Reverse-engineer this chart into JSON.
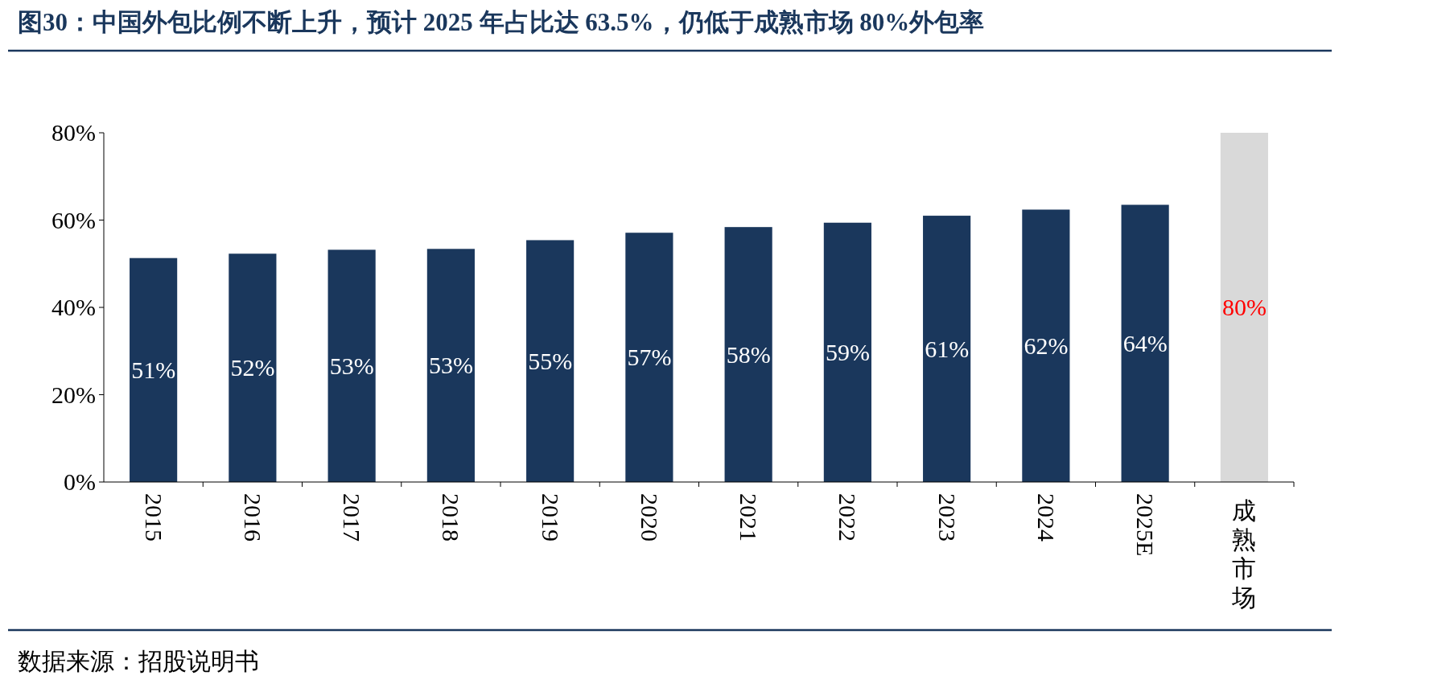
{
  "chart_data": {
    "type": "bar",
    "title": "图30：中国外包比例不断上升，预计 2025 年占比达 63.5%，仍低于成熟市场 80%外包率",
    "categories": [
      "2015",
      "2016",
      "2017",
      "2018",
      "2019",
      "2020",
      "2021",
      "2022",
      "2023",
      "2024",
      "2025E",
      "成熟市场"
    ],
    "values": [
      51.3,
      52.3,
      53.2,
      53.4,
      55.4,
      57.1,
      58.4,
      59.4,
      61.0,
      62.4,
      63.5,
      80
    ],
    "colors": [
      "#1a375c",
      "#1a375c",
      "#1a375c",
      "#1a375c",
      "#1a375c",
      "#1a375c",
      "#1a375c",
      "#1a375c",
      "#1a375c",
      "#1a375c",
      "#1a375c",
      "#d9d9d9"
    ],
    "value_labels": [
      "51%",
      "52%",
      "53%",
      "53%",
      "55%",
      "57%",
      "58%",
      "59%",
      "61%",
      "62%",
      "64%",
      "80%"
    ],
    "ylim": [
      0,
      80
    ],
    "yticks": [
      {
        "value": 0,
        "label": "0%"
      },
      {
        "value": 20,
        "label": "20%"
      },
      {
        "value": 40,
        "label": "40%"
      },
      {
        "value": 60,
        "label": "60%"
      },
      {
        "value": 80,
        "label": "80%"
      }
    ],
    "annotations": [
      "数据来源：招股说明书"
    ]
  }
}
